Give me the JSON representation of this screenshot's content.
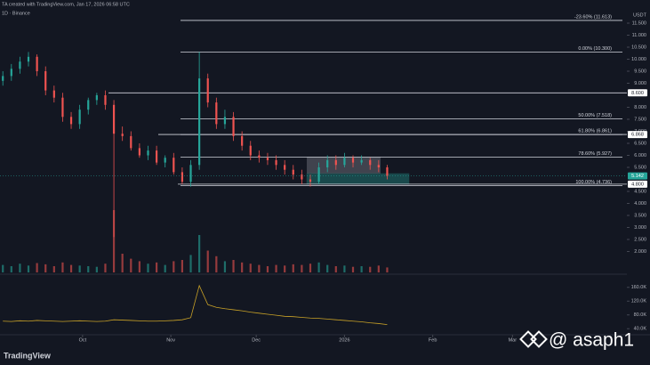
{
  "chart_data": {
    "type": "candlestick",
    "title": "TA created with TradingView.com, Jan 17, 2026 06:58 UTC",
    "subtitle": "1D · Binance",
    "currency": "USDT",
    "brand": "TradingView",
    "watermark": "@ asaph1",
    "x": [
      1,
      4,
      7,
      10,
      13,
      16,
      19,
      22,
      25,
      28,
      31,
      34,
      37,
      40,
      43,
      46,
      49,
      52,
      55,
      58,
      61,
      64,
      67,
      70,
      73,
      76,
      79,
      82,
      85,
      88,
      91,
      94,
      97,
      100,
      103,
      106,
      109,
      112,
      115,
      118,
      121,
      124,
      127,
      130,
      133,
      136
    ],
    "open": [
      9.1,
      9.3,
      9.6,
      9.9,
      10.1,
      9.5,
      8.7,
      8.4,
      7.6,
      7.3,
      7.9,
      8.3,
      8.5,
      8.1,
      6.9,
      6.8,
      6.3,
      6.0,
      6.2,
      5.7,
      5.9,
      5.3,
      4.9,
      5.6,
      9.2,
      8.2,
      7.3,
      7.6,
      6.8,
      6.4,
      6.0,
      5.9,
      5.8,
      5.6,
      5.4,
      5.2,
      5.0,
      4.9,
      5.5,
      5.8,
      5.6,
      5.9,
      5.7,
      5.8,
      5.6,
      5.5
    ],
    "high": [
      9.5,
      9.8,
      10.1,
      10.3,
      10.2,
      9.7,
      8.9,
      8.6,
      7.8,
      8.1,
      8.4,
      8.6,
      8.7,
      8.3,
      7.2,
      7.0,
      6.5,
      6.4,
      6.4,
      6.0,
      6.1,
      5.5,
      5.8,
      10.3,
      9.4,
      8.4,
      7.9,
      7.8,
      7.0,
      6.6,
      6.2,
      6.1,
      6.0,
      5.8,
      5.6,
      5.4,
      5.2,
      5.7,
      6.0,
      6.0,
      6.1,
      6.0,
      6.0,
      5.9,
      5.8,
      5.6
    ],
    "low": [
      8.9,
      9.1,
      9.4,
      9.7,
      9.3,
      8.5,
      8.2,
      7.4,
      7.1,
      7.1,
      7.7,
      8.1,
      7.9,
      2.6,
      6.6,
      6.2,
      5.9,
      5.8,
      5.6,
      5.5,
      5.2,
      4.8,
      4.7,
      5.4,
      8.0,
      7.1,
      7.1,
      6.6,
      6.2,
      5.8,
      5.7,
      5.6,
      5.4,
      5.2,
      5.0,
      4.8,
      4.7,
      4.8,
      5.3,
      5.4,
      5.5,
      5.5,
      5.6,
      5.4,
      5.3,
      5.0
    ],
    "close": [
      9.3,
      9.6,
      9.9,
      10.1,
      9.5,
      8.7,
      8.4,
      7.6,
      7.3,
      7.9,
      8.3,
      8.5,
      8.1,
      6.9,
      6.8,
      6.3,
      6.0,
      6.2,
      5.7,
      5.9,
      5.3,
      4.9,
      5.6,
      9.2,
      8.2,
      7.3,
      7.6,
      6.8,
      6.4,
      6.0,
      5.9,
      5.8,
      5.6,
      5.4,
      5.2,
      5.0,
      4.9,
      5.5,
      5.8,
      5.6,
      5.9,
      5.7,
      5.8,
      5.6,
      5.5,
      5.14
    ],
    "volume": [
      12,
      10,
      14,
      11,
      15,
      13,
      10,
      16,
      12,
      11,
      10,
      9,
      14,
      100,
      30,
      22,
      18,
      14,
      16,
      12,
      18,
      20,
      28,
      60,
      35,
      26,
      18,
      20,
      16,
      14,
      12,
      10,
      12,
      11,
      13,
      12,
      14,
      16,
      12,
      10,
      11,
      9,
      10,
      9,
      11,
      8
    ],
    "indicator": [
      62000,
      61000,
      63000,
      62000,
      64000,
      63000,
      62000,
      61000,
      62000,
      63000,
      62000,
      61000,
      62000,
      66000,
      65000,
      64000,
      63000,
      62000,
      62000,
      63000,
      64000,
      66000,
      72000,
      165000,
      110000,
      102000,
      98000,
      95000,
      92000,
      88000,
      85000,
      82000,
      79000,
      76000,
      75000,
      73000,
      71000,
      70000,
      68000,
      66000,
      64000,
      62000,
      60000,
      57000,
      55000,
      52000
    ],
    "xlim": [
      0,
      228
    ],
    "xticks": [
      {
        "value": 29,
        "label": "Oct"
      },
      {
        "value": 60,
        "label": "Nov"
      },
      {
        "value": 90,
        "label": "Dec"
      },
      {
        "value": 121,
        "label": "2026"
      },
      {
        "value": 152,
        "label": "Feb"
      },
      {
        "value": 180,
        "label": "Mar"
      }
    ],
    "ylim": [
      1.5,
      11.5
    ],
    "yticks": [
      {
        "value": 11.5,
        "label": "11.500"
      },
      {
        "value": 11,
        "label": "11.000"
      },
      {
        "value": 10.5,
        "label": "10.500"
      },
      {
        "value": 10,
        "label": "10.000"
      },
      {
        "value": 9.5,
        "label": "9.500"
      },
      {
        "value": 9,
        "label": "9.000"
      },
      {
        "value": 8,
        "label": "8.000"
      },
      {
        "value": 7.5,
        "label": "7.500"
      },
      {
        "value": 7,
        "label": "7.000"
      },
      {
        "value": 6.5,
        "label": "6.500"
      },
      {
        "value": 6,
        "label": "6.000"
      },
      {
        "value": 5.5,
        "label": "5.500"
      },
      {
        "value": 4.5,
        "label": "4.500"
      },
      {
        "value": 4,
        "label": "4.000"
      },
      {
        "value": 3.5,
        "label": "3.500"
      },
      {
        "value": 3,
        "label": "3.000"
      },
      {
        "value": 2.5,
        "label": "2.500"
      },
      {
        "value": 2,
        "label": "2.000"
      }
    ],
    "indicator_ylim": [
      20000,
      180000
    ],
    "indicator_ticks": [
      {
        "value": 160000,
        "label": "160.0K"
      },
      {
        "value": 120000,
        "label": "120.0K"
      },
      {
        "value": 80000,
        "label": "80.0K"
      },
      {
        "value": 40000,
        "label": "40.0K"
      }
    ],
    "fib_levels": [
      {
        "value": 11.613,
        "label": "-23.60% (11.613)"
      },
      {
        "value": 10.3,
        "label": "0.00% (10.300)"
      },
      {
        "value": 7.518,
        "label": "50.00% (7.518)"
      },
      {
        "value": 6.861,
        "label": "61.80% (6.861)"
      },
      {
        "value": 5.927,
        "label": "78.60% (5.927)"
      },
      {
        "value": 4.736,
        "label": "100.00% (4.736)"
      }
    ],
    "levels": [
      {
        "value": 8.6,
        "label": "8.600"
      },
      {
        "value": 6.868,
        "label": "6.868"
      },
      {
        "value": 4.8,
        "label": "4.800"
      }
    ],
    "last_price": {
      "value": 5.142,
      "label": "5.142"
    },
    "up_color": "#26a69a",
    "down_color": "#ef5350"
  }
}
